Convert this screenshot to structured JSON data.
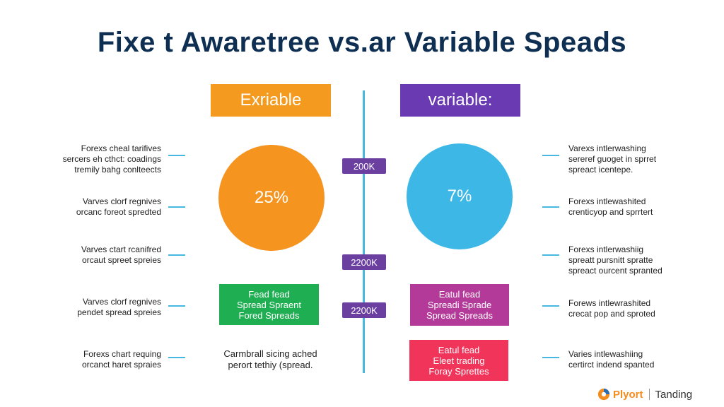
{
  "title": "Fixe t Awaretree vs.ar Variable Speads",
  "headers": {
    "left": "Exriable",
    "right": "variable:"
  },
  "circles": {
    "left_value": "25%",
    "right_value": "7%"
  },
  "tags": [
    "200K",
    "2200K",
    "2200K"
  ],
  "left_notes": [
    [
      "Forexs cheal tarifives",
      "sercers eh cthct: coadings",
      "tremily bahg conlteects"
    ],
    [
      "Varves clorf regnives",
      "orcanc foreot spredted"
    ],
    [
      "Varves ctart rcanifred",
      "orcaut spreet spreies"
    ],
    [
      "Varves clorf regnives",
      "pendet spread spreies"
    ],
    [
      "Forexs chart requing",
      "orcanct haret spraies"
    ]
  ],
  "right_notes": [
    [
      "Varexs intlerwashing",
      "sereref guoget in sprret",
      "spreact icentepe."
    ],
    [
      "Forexs intlewashited",
      "crenticyop and sprrtert"
    ],
    [
      "Forexs intlerwashiig",
      "spreatt pursnitt spratte",
      "spreact ourcent spranted"
    ],
    [
      "Forews intlewrashited",
      "crecat pop and sproted"
    ],
    [
      "Varies intlewashiing",
      "certirct indend spanted"
    ]
  ],
  "boxes": {
    "green": [
      "Fead fead",
      "Spread Spraent",
      "Fored Spreads"
    ],
    "magenta": [
      "Eatul fead",
      "Spreadi Sprade",
      "Spread Spreads"
    ],
    "red": [
      "Eatul fead",
      "Eleet trading",
      "Foray Sprettes"
    ]
  },
  "center_note": [
    "Carmbrall sicing ached",
    "perort tethiy (spread."
  ],
  "brand": {
    "name": "Plyort",
    "tagline": "Tanding",
    "icon": "brand-logo-icon",
    "accent": "#f28c1e"
  }
}
